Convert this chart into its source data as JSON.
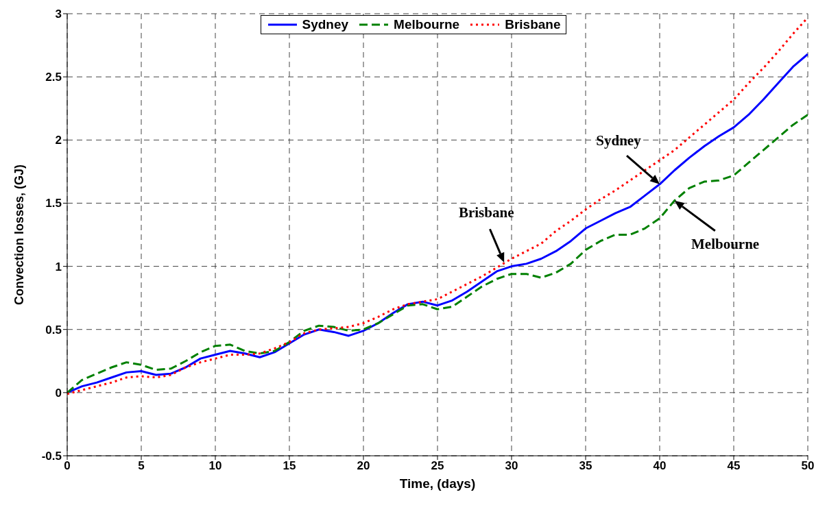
{
  "chart_data": {
    "type": "line",
    "xlabel": "Time, (days)",
    "ylabel": "Convection losses, (GJ)",
    "x": [
      0,
      1,
      2,
      3,
      4,
      5,
      6,
      7,
      8,
      9,
      10,
      11,
      12,
      13,
      14,
      15,
      16,
      17,
      18,
      19,
      20,
      21,
      22,
      23,
      24,
      25,
      26,
      27,
      28,
      29,
      30,
      31,
      32,
      33,
      34,
      35,
      36,
      37,
      38,
      39,
      40,
      41,
      42,
      43,
      44,
      45,
      46,
      47,
      48,
      49,
      50
    ],
    "series": [
      {
        "name": "Sydney",
        "color": "#0000ff",
        "line_style": "solid",
        "values": [
          0,
          0.05,
          0.08,
          0.12,
          0.16,
          0.17,
          0.14,
          0.15,
          0.2,
          0.27,
          0.3,
          0.33,
          0.31,
          0.28,
          0.32,
          0.39,
          0.46,
          0.5,
          0.48,
          0.45,
          0.49,
          0.55,
          0.63,
          0.7,
          0.72,
          0.69,
          0.73,
          0.8,
          0.88,
          0.96,
          1.0,
          1.02,
          1.06,
          1.12,
          1.2,
          1.3,
          1.36,
          1.42,
          1.47,
          1.56,
          1.65,
          1.76,
          1.86,
          1.95,
          2.03,
          2.1,
          2.2,
          2.32,
          2.45,
          2.58,
          2.68
        ]
      },
      {
        "name": "Melbourne",
        "color": "#008000",
        "line_style": "dashed",
        "values": [
          0,
          0.1,
          0.15,
          0.2,
          0.24,
          0.22,
          0.18,
          0.19,
          0.25,
          0.32,
          0.37,
          0.38,
          0.33,
          0.31,
          0.33,
          0.4,
          0.49,
          0.53,
          0.52,
          0.49,
          0.5,
          0.55,
          0.62,
          0.69,
          0.7,
          0.66,
          0.68,
          0.76,
          0.84,
          0.9,
          0.94,
          0.94,
          0.91,
          0.95,
          1.02,
          1.13,
          1.2,
          1.25,
          1.25,
          1.3,
          1.38,
          1.52,
          1.62,
          1.67,
          1.68,
          1.72,
          1.82,
          1.92,
          2.02,
          2.12,
          2.2
        ]
      },
      {
        "name": "Brisbane",
        "color": "#ff0000",
        "line_style": "dotted",
        "values": [
          -0.01,
          0.02,
          0.05,
          0.08,
          0.12,
          0.13,
          0.12,
          0.14,
          0.2,
          0.24,
          0.27,
          0.3,
          0.3,
          0.31,
          0.35,
          0.4,
          0.47,
          0.5,
          0.51,
          0.52,
          0.55,
          0.6,
          0.66,
          0.7,
          0.72,
          0.74,
          0.8,
          0.86,
          0.92,
          0.99,
          1.06,
          1.12,
          1.18,
          1.28,
          1.36,
          1.45,
          1.53,
          1.6,
          1.68,
          1.76,
          1.84,
          1.92,
          2.02,
          2.12,
          2.22,
          2.32,
          2.45,
          2.57,
          2.7,
          2.84,
          2.97
        ]
      }
    ],
    "xlim": [
      0,
      50
    ],
    "xticks": [
      0,
      5,
      10,
      15,
      20,
      25,
      30,
      35,
      40,
      45,
      50
    ],
    "ylim": [
      -0.5,
      3
    ],
    "yticks": [
      -0.5,
      0,
      0.5,
      1,
      1.5,
      2,
      2.5,
      3
    ],
    "grid": true,
    "legend": "top",
    "marker": "none",
    "annotations": [
      {
        "text": "Brisbane",
        "x": 29.5,
        "y": 1.03
      },
      {
        "text": "Sydney",
        "x": 40,
        "y": 1.65
      },
      {
        "text": "Melbourne",
        "x": 41,
        "y": 1.52
      }
    ]
  }
}
